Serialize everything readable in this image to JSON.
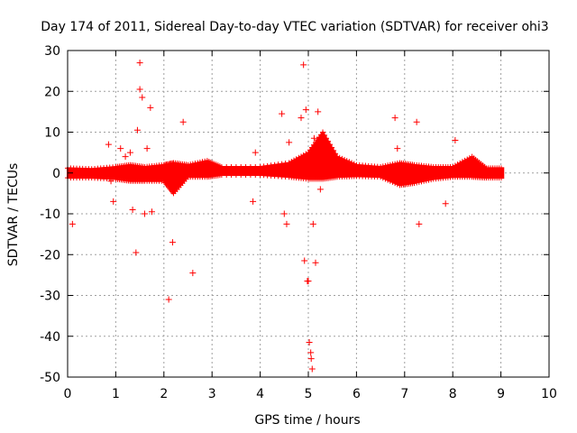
{
  "colors": {
    "series": "#ff0000",
    "axis": "#000000",
    "grid": "#a0a0a0"
  },
  "chart_data": {
    "type": "scatter",
    "title": "Day 174 of 2011, Sidereal Day-to-day VTEC variation (SDTVAR) for receiver ohi3",
    "xlabel": "GPS time / hours",
    "ylabel": "SDTVAR / TECUs",
    "xlim": [
      0,
      10
    ],
    "ylim": [
      -50,
      30
    ],
    "xticks": [
      0,
      1,
      2,
      3,
      4,
      5,
      6,
      7,
      8,
      9,
      10
    ],
    "yticks": [
      -50,
      -40,
      -30,
      -20,
      -10,
      0,
      10,
      20,
      30
    ],
    "grid": true,
    "marker": "+",
    "band": [
      {
        "x": 0.0,
        "lo": -1.2,
        "hi": 1.2
      },
      {
        "x": 0.5,
        "lo": -1.2,
        "hi": 1.0
      },
      {
        "x": 1.0,
        "lo": -1.5,
        "hi": 1.5
      },
      {
        "x": 1.3,
        "lo": -2.0,
        "hi": 2.0
      },
      {
        "x": 1.6,
        "lo": -2.0,
        "hi": 1.5
      },
      {
        "x": 2.0,
        "lo": -2.0,
        "hi": 2.0
      },
      {
        "x": 2.2,
        "lo": -5.0,
        "hi": 2.5
      },
      {
        "x": 2.5,
        "lo": -1.0,
        "hi": 2.0
      },
      {
        "x": 2.9,
        "lo": -1.0,
        "hi": 3.0
      },
      {
        "x": 3.2,
        "lo": -0.5,
        "hi": 1.5
      },
      {
        "x": 4.0,
        "lo": -0.5,
        "hi": 1.5
      },
      {
        "x": 4.6,
        "lo": -1.0,
        "hi": 2.5
      },
      {
        "x": 5.0,
        "lo": -1.5,
        "hi": 5.0
      },
      {
        "x": 5.3,
        "lo": -1.5,
        "hi": 10.0
      },
      {
        "x": 5.6,
        "lo": -1.0,
        "hi": 4.0
      },
      {
        "x": 6.0,
        "lo": -0.8,
        "hi": 2.0
      },
      {
        "x": 6.5,
        "lo": -1.0,
        "hi": 1.5
      },
      {
        "x": 6.9,
        "lo": -3.0,
        "hi": 2.5
      },
      {
        "x": 7.2,
        "lo": -2.5,
        "hi": 2.0
      },
      {
        "x": 7.6,
        "lo": -1.5,
        "hi": 1.5
      },
      {
        "x": 8.0,
        "lo": -1.0,
        "hi": 1.5
      },
      {
        "x": 8.4,
        "lo": -1.0,
        "hi": 4.0
      },
      {
        "x": 8.7,
        "lo": -1.2,
        "hi": 1.2
      },
      {
        "x": 9.05,
        "lo": -1.2,
        "hi": 1.2
      }
    ],
    "x": [
      0.1,
      0.85,
      0.9,
      0.95,
      1.1,
      1.2,
      1.3,
      1.35,
      1.42,
      1.45,
      1.5,
      1.5,
      1.55,
      1.6,
      1.65,
      1.72,
      1.75,
      2.1,
      2.18,
      2.4,
      2.6,
      3.85,
      3.9,
      4.45,
      4.5,
      4.55,
      4.6,
      4.85,
      4.9,
      4.92,
      4.95,
      4.98,
      5.0,
      5.02,
      5.05,
      5.06,
      5.08,
      5.1,
      5.12,
      5.15,
      5.2,
      5.25,
      6.8,
      6.85,
      7.25,
      7.3,
      7.85,
      8.05
    ],
    "y": [
      -12.5,
      7.0,
      -2.0,
      -7.0,
      6.0,
      4.0,
      5.0,
      -9.0,
      -19.5,
      10.5,
      27.0,
      20.5,
      18.5,
      -10.0,
      6.0,
      16.0,
      -9.5,
      -31.0,
      -17.0,
      12.5,
      -24.5,
      -7.0,
      5.0,
      14.5,
      -10.0,
      -12.5,
      7.5,
      13.5,
      26.5,
      -21.5,
      15.5,
      -26.5,
      -26.5,
      -41.5,
      -44.0,
      -45.5,
      -48.0,
      -12.5,
      8.5,
      -22.0,
      15.0,
      -4.0,
      13.5,
      6.0,
      12.5,
      -12.5,
      -7.5,
      8.0
    ]
  }
}
